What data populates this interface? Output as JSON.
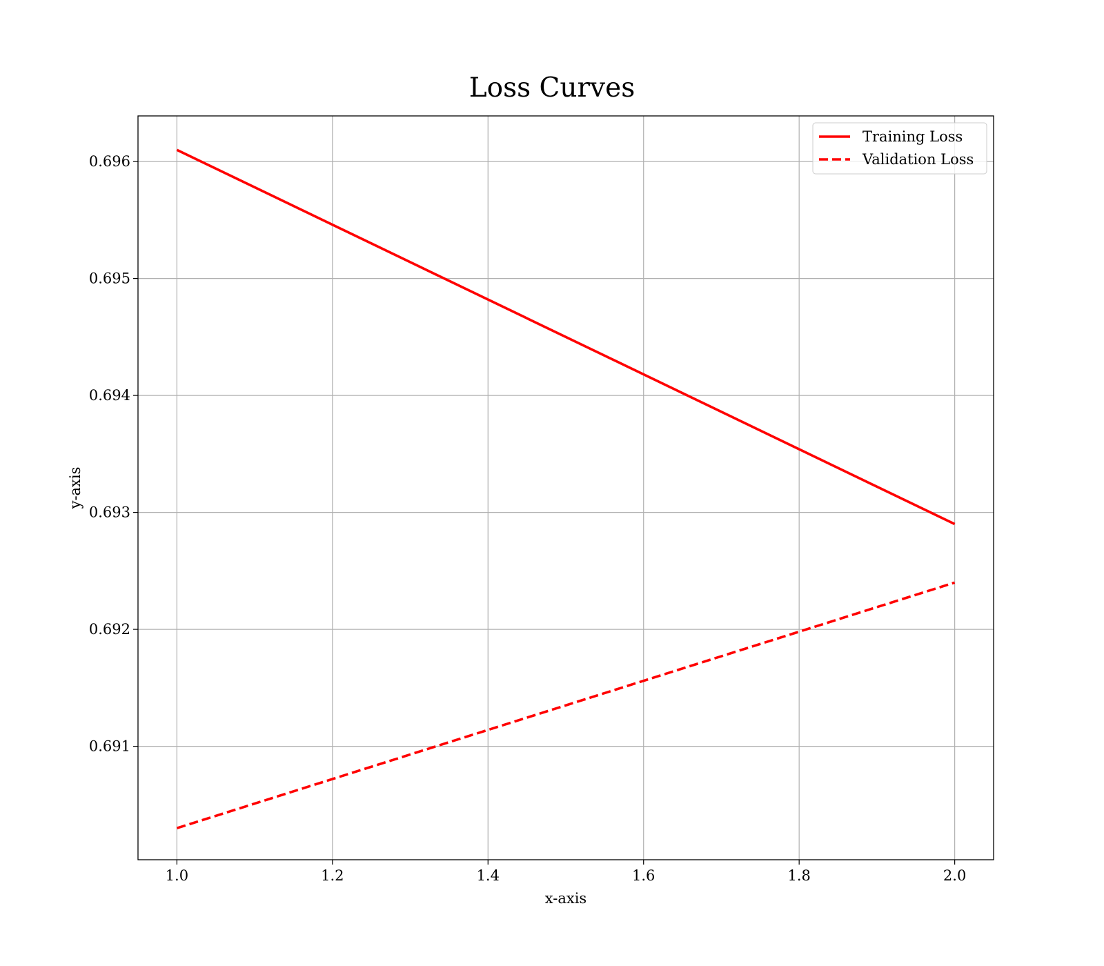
{
  "chart_data": {
    "type": "line",
    "title": "Loss Curves",
    "xlabel": "x-axis",
    "ylabel": "y-axis",
    "xlim": [
      0.95,
      2.05
    ],
    "ylim": [
      0.69003,
      0.69639
    ],
    "x_ticks": [
      1.0,
      1.2,
      1.4,
      1.6,
      1.8,
      2.0
    ],
    "x_tick_labels": [
      "1.0",
      "1.2",
      "1.4",
      "1.6",
      "1.8",
      "2.0"
    ],
    "y_ticks": [
      0.691,
      0.692,
      0.693,
      0.694,
      0.695,
      0.696
    ],
    "y_tick_labels": [
      "0.691",
      "0.692",
      "0.693",
      "0.694",
      "0.695",
      "0.696"
    ],
    "grid": true,
    "legend_position": "top-right",
    "series": [
      {
        "name": "Training Loss",
        "x": [
          1,
          2
        ],
        "y": [
          0.6961,
          0.6929
        ],
        "color": "#ff0000",
        "line_style": "solid"
      },
      {
        "name": "Validation Loss",
        "x": [
          1,
          2
        ],
        "y": [
          0.6903,
          0.6924
        ],
        "color": "#ff0000",
        "line_style": "dashed"
      }
    ]
  }
}
